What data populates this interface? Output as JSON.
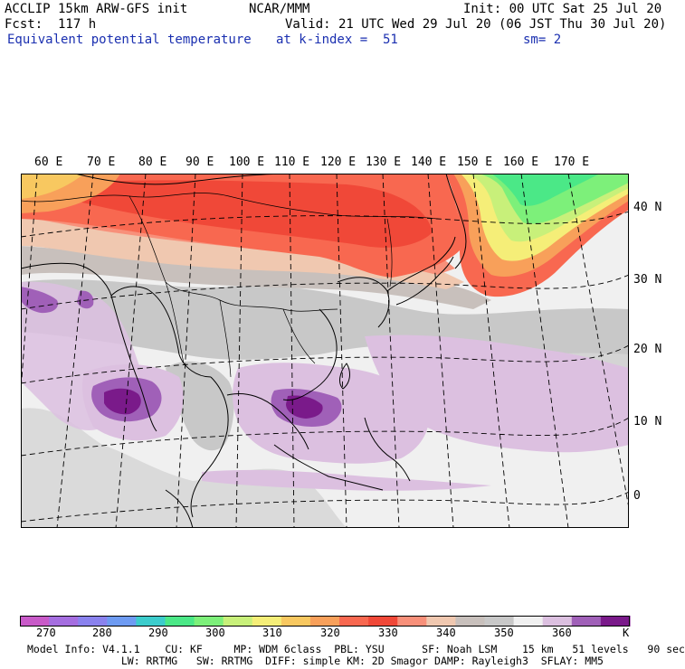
{
  "header": {
    "left_line1": "ACCLIP 15km ARW-GFS init",
    "center_line1": "NCAR/MMM",
    "right_line1": "Init: 00 UTC Sat 25 Jul 20",
    "left_line2": "Fcst:  117 h",
    "right_line2": "Valid: 21 UTC Wed 29 Jul 20 (06 JST Thu 30 Jul 20)",
    "field_name": "Equivalent potential temperature",
    "level": "at k-index =  51",
    "smoothing": "sm= 2"
  },
  "map": {
    "longitude_labels": [
      "60 E",
      "70 E",
      "80 E",
      "90 E",
      "100 E",
      "110 E",
      "120 E",
      "130 E",
      "140 E",
      "150 E",
      "160 E",
      "170 E"
    ],
    "latitude_labels": [
      "40 N",
      "30 N",
      "20 N",
      "10 N",
      "0"
    ]
  },
  "colorbar": {
    "unit": "K",
    "tick_labels": [
      "270",
      "280",
      "290",
      "300",
      "310",
      "320",
      "330",
      "340",
      "350",
      "360"
    ],
    "colors": [
      "#c85ac8",
      "#a56ee0",
      "#8a82ee",
      "#6e9bf2",
      "#3ccccc",
      "#4be887",
      "#7df07a",
      "#c8f07a",
      "#f5ee78",
      "#f8c860",
      "#f8a05a",
      "#f86850",
      "#f04838",
      "#f8907a",
      "#f0c8b0",
      "#c8c0bc",
      "#c8c8c8",
      "#f0f0f0",
      "#dcc0e0",
      "#a060b8",
      "#7a1a8a"
    ]
  },
  "footer": {
    "line1": "Model Info: V4.1.1    CU: KF     MP: WDM 6class  PBL: YSU      SF: Noah LSM    15 km   51 levels   90 sec",
    "line2": "               LW: RRTMG   SW: RRTMG  DIFF: simple KM: 2D Smagor DAMP: Rayleigh3  SFLAY: MM5"
  }
}
